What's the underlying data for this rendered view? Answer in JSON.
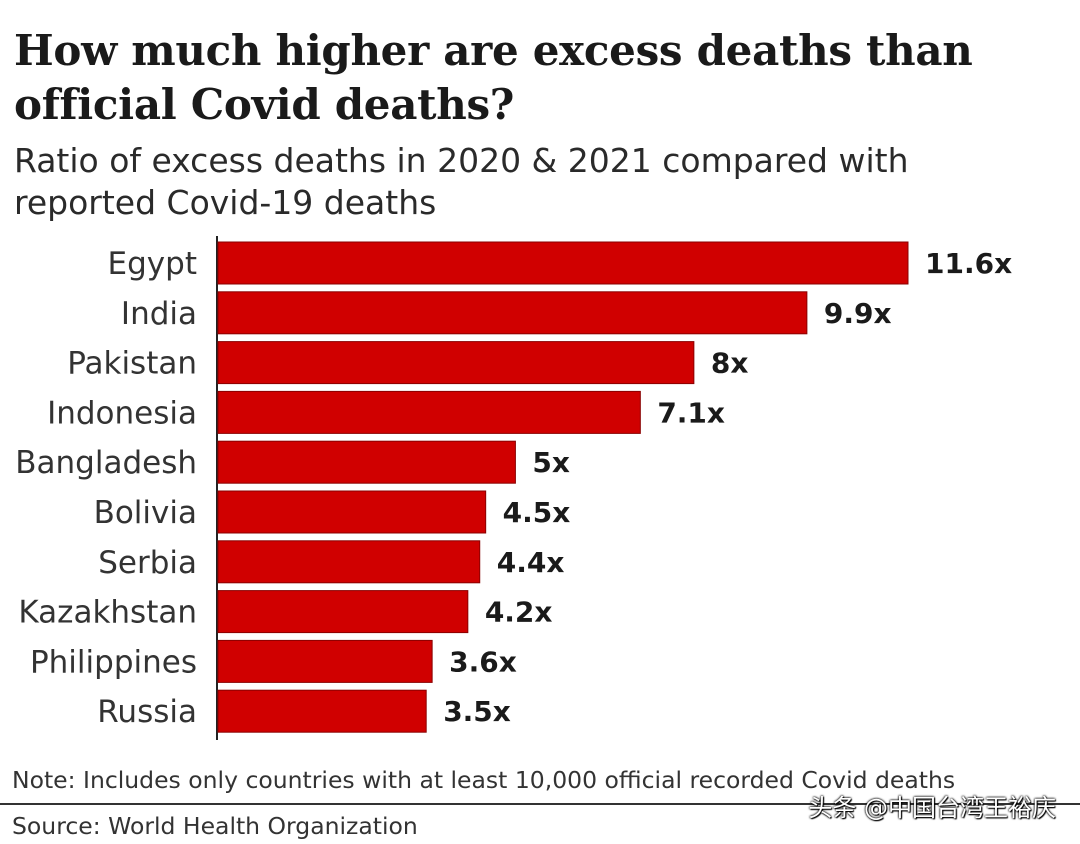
{
  "chart_data": {
    "type": "bar",
    "orientation": "horizontal",
    "title": "How much higher are excess deaths than official Covid deaths?",
    "subtitle": "Ratio of excess deaths in 2020 & 2021 compared with reported Covid-19 deaths",
    "categories": [
      "Egypt",
      "India",
      "Pakistan",
      "Indonesia",
      "Bangladesh",
      "Bolivia",
      "Serbia",
      "Kazakhstan",
      "Philippines",
      "Russia"
    ],
    "values": [
      11.6,
      9.9,
      8,
      7.1,
      5,
      4.5,
      4.4,
      4.2,
      3.6,
      3.5
    ],
    "value_labels": [
      "11.6x",
      "9.9x",
      "8x",
      "7.1x",
      "5x",
      "4.5x",
      "4.4x",
      "4.2x",
      "3.6x",
      "3.5x"
    ],
    "xlim": [
      0,
      11.6
    ],
    "grid": false,
    "legend": "none",
    "bar_color": "#d00000",
    "note": "Note: Includes only countries with at least 10,000 official recorded Covid deaths",
    "source": "Source: World Health Organization"
  },
  "watermark": "头条 @中国台湾王裕庆"
}
